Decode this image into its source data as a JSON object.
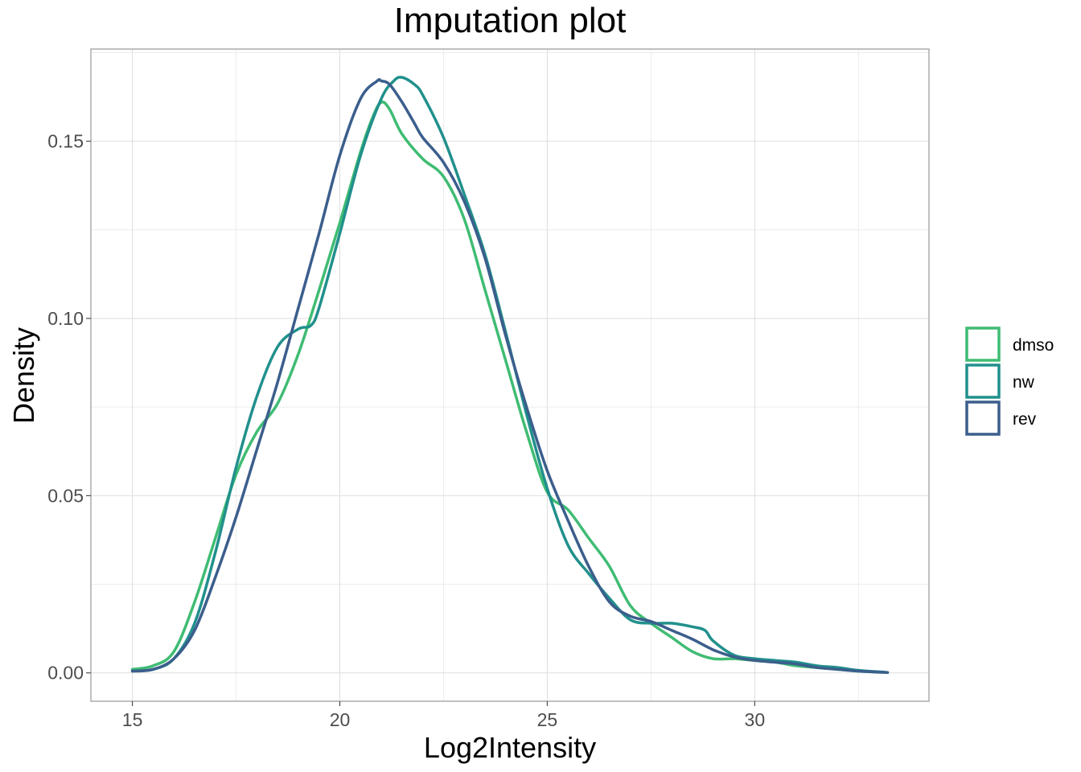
{
  "chart_data": {
    "type": "line",
    "title": "Imputation plot",
    "xlabel": "Log2Intensity",
    "ylabel": "Density",
    "xlim": [
      14,
      34.2
    ],
    "ylim": [
      -0.008,
      0.176
    ],
    "x_ticks": [
      15,
      20,
      25,
      30
    ],
    "x_tick_labels": [
      "15",
      "20",
      "25",
      "30"
    ],
    "y_ticks": [
      0.0,
      0.05,
      0.1,
      0.15
    ],
    "y_tick_labels": [
      "0.00",
      "0.05",
      "0.10",
      "0.15"
    ],
    "grid": true,
    "legend_position": "right",
    "series": [
      {
        "name": "dmso",
        "color": "#3fbc73",
        "x": [
          15.0,
          15.5,
          16.0,
          16.5,
          17.0,
          17.5,
          18.0,
          18.5,
          19.0,
          19.5,
          20.0,
          20.5,
          20.8,
          21.0,
          21.2,
          21.5,
          22.0,
          22.5,
          23.0,
          23.5,
          24.0,
          24.5,
          25.0,
          25.5,
          26.0,
          26.5,
          27.0,
          27.5,
          28.0,
          28.5,
          29.0,
          29.5,
          30.0,
          30.5,
          31.0,
          31.5,
          32.0,
          32.5,
          33.0,
          33.2
        ],
        "values": [
          0.001,
          0.002,
          0.006,
          0.02,
          0.038,
          0.056,
          0.068,
          0.076,
          0.09,
          0.108,
          0.127,
          0.147,
          0.157,
          0.161,
          0.159,
          0.152,
          0.145,
          0.14,
          0.128,
          0.108,
          0.088,
          0.068,
          0.051,
          0.046,
          0.038,
          0.03,
          0.019,
          0.014,
          0.01,
          0.006,
          0.004,
          0.004,
          0.0035,
          0.003,
          0.002,
          0.0015,
          0.001,
          0.0005,
          0.0002,
          0.0001
        ]
      },
      {
        "name": "nw",
        "color": "#21908c",
        "x": [
          15.0,
          15.5,
          16.0,
          16.5,
          17.0,
          17.5,
          18.0,
          18.5,
          19.0,
          19.3,
          19.5,
          20.0,
          20.5,
          21.0,
          21.3,
          21.5,
          21.8,
          22.0,
          22.5,
          23.0,
          23.5,
          24.0,
          24.5,
          25.0,
          25.5,
          26.0,
          26.5,
          27.0,
          27.5,
          28.0,
          28.5,
          28.8,
          29.0,
          29.5,
          30.0,
          30.5,
          31.0,
          31.5,
          32.0,
          32.5,
          33.0,
          33.2
        ],
        "values": [
          0.0005,
          0.001,
          0.004,
          0.014,
          0.034,
          0.058,
          0.078,
          0.092,
          0.097,
          0.098,
          0.103,
          0.124,
          0.146,
          0.162,
          0.167,
          0.168,
          0.166,
          0.163,
          0.151,
          0.135,
          0.118,
          0.096,
          0.073,
          0.052,
          0.036,
          0.028,
          0.021,
          0.015,
          0.014,
          0.014,
          0.013,
          0.012,
          0.009,
          0.005,
          0.004,
          0.0035,
          0.003,
          0.002,
          0.0015,
          0.0007,
          0.0003,
          0.0001
        ]
      },
      {
        "name": "rev",
        "color": "#3b5e8c",
        "x": [
          15.0,
          15.5,
          16.0,
          16.5,
          17.0,
          17.5,
          18.0,
          18.5,
          19.0,
          19.5,
          20.0,
          20.5,
          20.9,
          21.0,
          21.2,
          21.5,
          21.8,
          22.0,
          22.5,
          23.0,
          23.5,
          24.0,
          24.5,
          25.0,
          25.5,
          26.0,
          26.5,
          27.0,
          27.5,
          28.0,
          28.5,
          29.0,
          29.5,
          30.0,
          30.5,
          31.0,
          31.5,
          32.0,
          32.5,
          33.0,
          33.2
        ],
        "values": [
          0.0005,
          0.001,
          0.004,
          0.012,
          0.027,
          0.044,
          0.063,
          0.082,
          0.103,
          0.124,
          0.146,
          0.162,
          0.167,
          0.167,
          0.166,
          0.161,
          0.155,
          0.151,
          0.144,
          0.133,
          0.117,
          0.095,
          0.075,
          0.057,
          0.043,
          0.03,
          0.02,
          0.016,
          0.0145,
          0.012,
          0.0095,
          0.0065,
          0.0045,
          0.0035,
          0.003,
          0.0025,
          0.0015,
          0.001,
          0.0005,
          0.0002,
          0.0001
        ]
      }
    ]
  }
}
